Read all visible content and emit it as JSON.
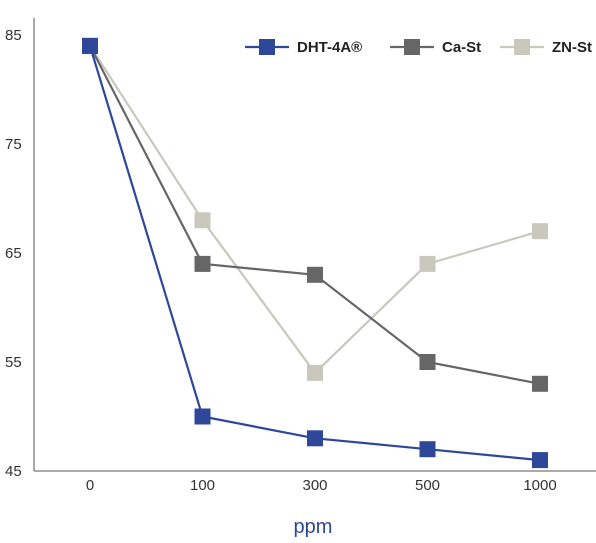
{
  "chart_data": {
    "type": "line",
    "title": "",
    "xlabel": "ppm",
    "ylabel": "",
    "categories": [
      "0",
      "100",
      "300",
      "500",
      "1000"
    ],
    "yticks": [
      45,
      55,
      65,
      75,
      85
    ],
    "ylim": [
      45,
      85
    ],
    "grid": false,
    "legend_position": "top-right",
    "series": [
      {
        "name": "DHT-4A®",
        "color": "#2e4799",
        "values": [
          84,
          50,
          48,
          47,
          46
        ]
      },
      {
        "name": "Ca-St",
        "color": "#666666",
        "values": [
          84,
          64,
          63,
          55,
          53
        ]
      },
      {
        "name": "ZN-St",
        "color": "#c9c8bd",
        "values": [
          84,
          68,
          54,
          64,
          67
        ]
      }
    ]
  }
}
